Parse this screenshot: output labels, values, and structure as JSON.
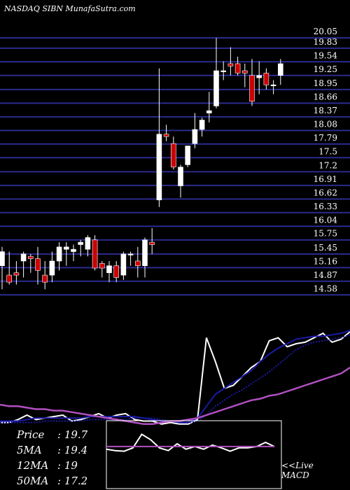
{
  "header": {
    "title": "NASDAQ SIBN MunafaSutra.com"
  },
  "stats": [
    {
      "label": "Price",
      "value": ": 19.7"
    },
    {
      "label": "5MA",
      "value": ": 19.4"
    },
    {
      "label": "12MA",
      "value": ": 19"
    },
    {
      "label": "50MA",
      "value": ": 17.2"
    }
  ],
  "macd_note": {
    "line1": "<<Live",
    "line2": "MACD"
  },
  "colors": {
    "background": "#000000",
    "gridline": "#2b2b8f",
    "up_candle": "#ffffff",
    "down_candle": "#cc0000",
    "ma_fast": "#ffffff",
    "ma_medium": "#1a1aa8",
    "ma_slow": "#b050c0",
    "macd_line": "#ffffff",
    "macd_signal": "#b050c0"
  },
  "chart_data": [
    {
      "type": "candlestick",
      "title": "NASDAQ SIBN",
      "price_levels": [
        20.05,
        19.83,
        19.54,
        19.25,
        18.95,
        18.66,
        18.37,
        18.08,
        17.79,
        17.5,
        17.2,
        16.91,
        16.62,
        16.33,
        16.04,
        15.75,
        15.45,
        15.16,
        14.87,
        14.58
      ],
      "ylim": [
        14.45,
        20.2
      ],
      "grid": true,
      "candles": [
        {
          "o": 15.2,
          "h": 15.6,
          "l": 14.7,
          "c": 15.5
        },
        {
          "o": 15.0,
          "h": 15.5,
          "l": 14.8,
          "c": 14.85
        },
        {
          "o": 15.05,
          "h": 15.3,
          "l": 14.8,
          "c": 15.0
        },
        {
          "o": 15.3,
          "h": 15.5,
          "l": 14.95,
          "c": 15.45
        },
        {
          "o": 15.4,
          "h": 15.45,
          "l": 15.05,
          "c": 15.35
        },
        {
          "o": 15.35,
          "h": 15.6,
          "l": 14.8,
          "c": 15.1
        },
        {
          "o": 15.0,
          "h": 15.3,
          "l": 14.7,
          "c": 14.85
        },
        {
          "o": 15.0,
          "h": 15.5,
          "l": 14.85,
          "c": 15.3
        },
        {
          "o": 15.3,
          "h": 15.7,
          "l": 15.1,
          "c": 15.6
        },
        {
          "o": 15.55,
          "h": 15.7,
          "l": 15.2,
          "c": 15.6
        },
        {
          "o": 15.5,
          "h": 15.65,
          "l": 15.3,
          "c": 15.55
        },
        {
          "o": 15.65,
          "h": 15.75,
          "l": 15.4,
          "c": 15.7
        },
        {
          "o": 15.55,
          "h": 15.85,
          "l": 15.4,
          "c": 15.8
        },
        {
          "o": 15.75,
          "h": 15.85,
          "l": 15.1,
          "c": 15.15
        },
        {
          "o": 15.25,
          "h": 15.3,
          "l": 14.95,
          "c": 15.15
        },
        {
          "o": 15.05,
          "h": 15.3,
          "l": 14.85,
          "c": 15.2
        },
        {
          "o": 15.2,
          "h": 15.3,
          "l": 14.85,
          "c": 14.95
        },
        {
          "o": 15.0,
          "h": 15.5,
          "l": 14.9,
          "c": 15.45
        },
        {
          "o": 15.45,
          "h": 15.5,
          "l": 15.2,
          "c": 15.45
        },
        {
          "o": 15.3,
          "h": 15.6,
          "l": 14.95,
          "c": 15.2
        },
        {
          "o": 15.2,
          "h": 15.8,
          "l": 14.95,
          "c": 15.75
        },
        {
          "o": 15.7,
          "h": 16.0,
          "l": 15.45,
          "c": 15.65
        },
        {
          "o": 16.6,
          "h": 19.4,
          "l": 16.45,
          "c": 18.0
        },
        {
          "o": 18.0,
          "h": 18.2,
          "l": 17.85,
          "c": 17.95
        },
        {
          "o": 17.8,
          "h": 17.95,
          "l": 17.25,
          "c": 17.3
        },
        {
          "o": 16.9,
          "h": 17.35,
          "l": 16.65,
          "c": 17.3
        },
        {
          "o": 17.35,
          "h": 17.75,
          "l": 17.3,
          "c": 17.75
        },
        {
          "o": 17.8,
          "h": 18.45,
          "l": 17.7,
          "c": 18.1
        },
        {
          "o": 18.1,
          "h": 18.35,
          "l": 17.95,
          "c": 18.3
        },
        {
          "o": 18.45,
          "h": 18.9,
          "l": 18.25,
          "c": 18.5
        },
        {
          "o": 18.6,
          "h": 20.05,
          "l": 18.55,
          "c": 19.35
        },
        {
          "o": 19.35,
          "h": 19.55,
          "l": 19.15,
          "c": 19.35
        },
        {
          "o": 19.5,
          "h": 19.85,
          "l": 19.25,
          "c": 19.45
        },
        {
          "o": 19.5,
          "h": 19.65,
          "l": 19.25,
          "c": 19.3
        },
        {
          "o": 19.35,
          "h": 19.5,
          "l": 19.0,
          "c": 19.3
        },
        {
          "o": 19.25,
          "h": 19.6,
          "l": 18.6,
          "c": 18.7
        },
        {
          "o": 19.2,
          "h": 19.55,
          "l": 18.85,
          "c": 19.25
        },
        {
          "o": 19.3,
          "h": 19.4,
          "l": 18.95,
          "c": 19.05
        },
        {
          "o": 19.05,
          "h": 19.15,
          "l": 18.85,
          "c": 19.05
        },
        {
          "o": 19.25,
          "h": 19.6,
          "l": 19.05,
          "c": 19.5
        }
      ]
    },
    {
      "type": "line",
      "series": [
        {
          "values": [
            3,
            3,
            5,
            8,
            5,
            6,
            7,
            8,
            4,
            5,
            7,
            9,
            6,
            8,
            9,
            5,
            4,
            4,
            2,
            3,
            2,
            2,
            5,
            60,
            44,
            26,
            28,
            34,
            40,
            44,
            58,
            60,
            54,
            56,
            57,
            60,
            63,
            57,
            59,
            64
          ]
        },
        {
          "values": [
            4,
            4,
            4,
            5,
            6,
            6,
            6,
            6,
            6,
            6,
            7,
            7,
            7,
            7,
            7,
            7,
            6,
            5,
            4,
            4,
            3,
            3,
            6,
            14,
            22,
            26,
            30,
            34,
            38,
            44,
            49,
            53,
            56,
            59,
            60,
            61,
            61,
            62,
            63,
            65
          ]
        },
        {
          "values": [
            3,
            3,
            3,
            3,
            3,
            4,
            4,
            4,
            4,
            4,
            5,
            5,
            5,
            5,
            5,
            6,
            6,
            6,
            5,
            4,
            3,
            3,
            4,
            8,
            14,
            18,
            22,
            25,
            29,
            33,
            37,
            42,
            47,
            52,
            55,
            57,
            58,
            59,
            60,
            62
          ]
        },
        {
          "values": [
            15,
            14,
            14,
            13,
            12,
            12,
            11,
            11,
            10,
            9,
            8,
            7,
            6,
            5,
            4,
            3,
            2,
            2,
            3,
            4,
            4,
            5,
            6,
            8,
            10,
            12,
            14,
            16,
            18,
            19,
            21,
            22,
            24,
            26,
            28,
            30,
            32,
            34,
            36,
            40
          ]
        }
      ]
    },
    {
      "type": "line",
      "series": [
        {
          "values": [
            58,
            56,
            55,
            60,
            80,
            72,
            60,
            56,
            66,
            58,
            62,
            58,
            64,
            60,
            55,
            60,
            60,
            62,
            68,
            62
          ]
        },
        {
          "values": [
            62,
            62,
            62,
            62,
            62,
            62,
            62,
            62,
            62,
            62,
            62,
            62,
            62,
            62,
            62,
            62,
            62,
            62,
            62,
            62
          ]
        }
      ]
    }
  ]
}
